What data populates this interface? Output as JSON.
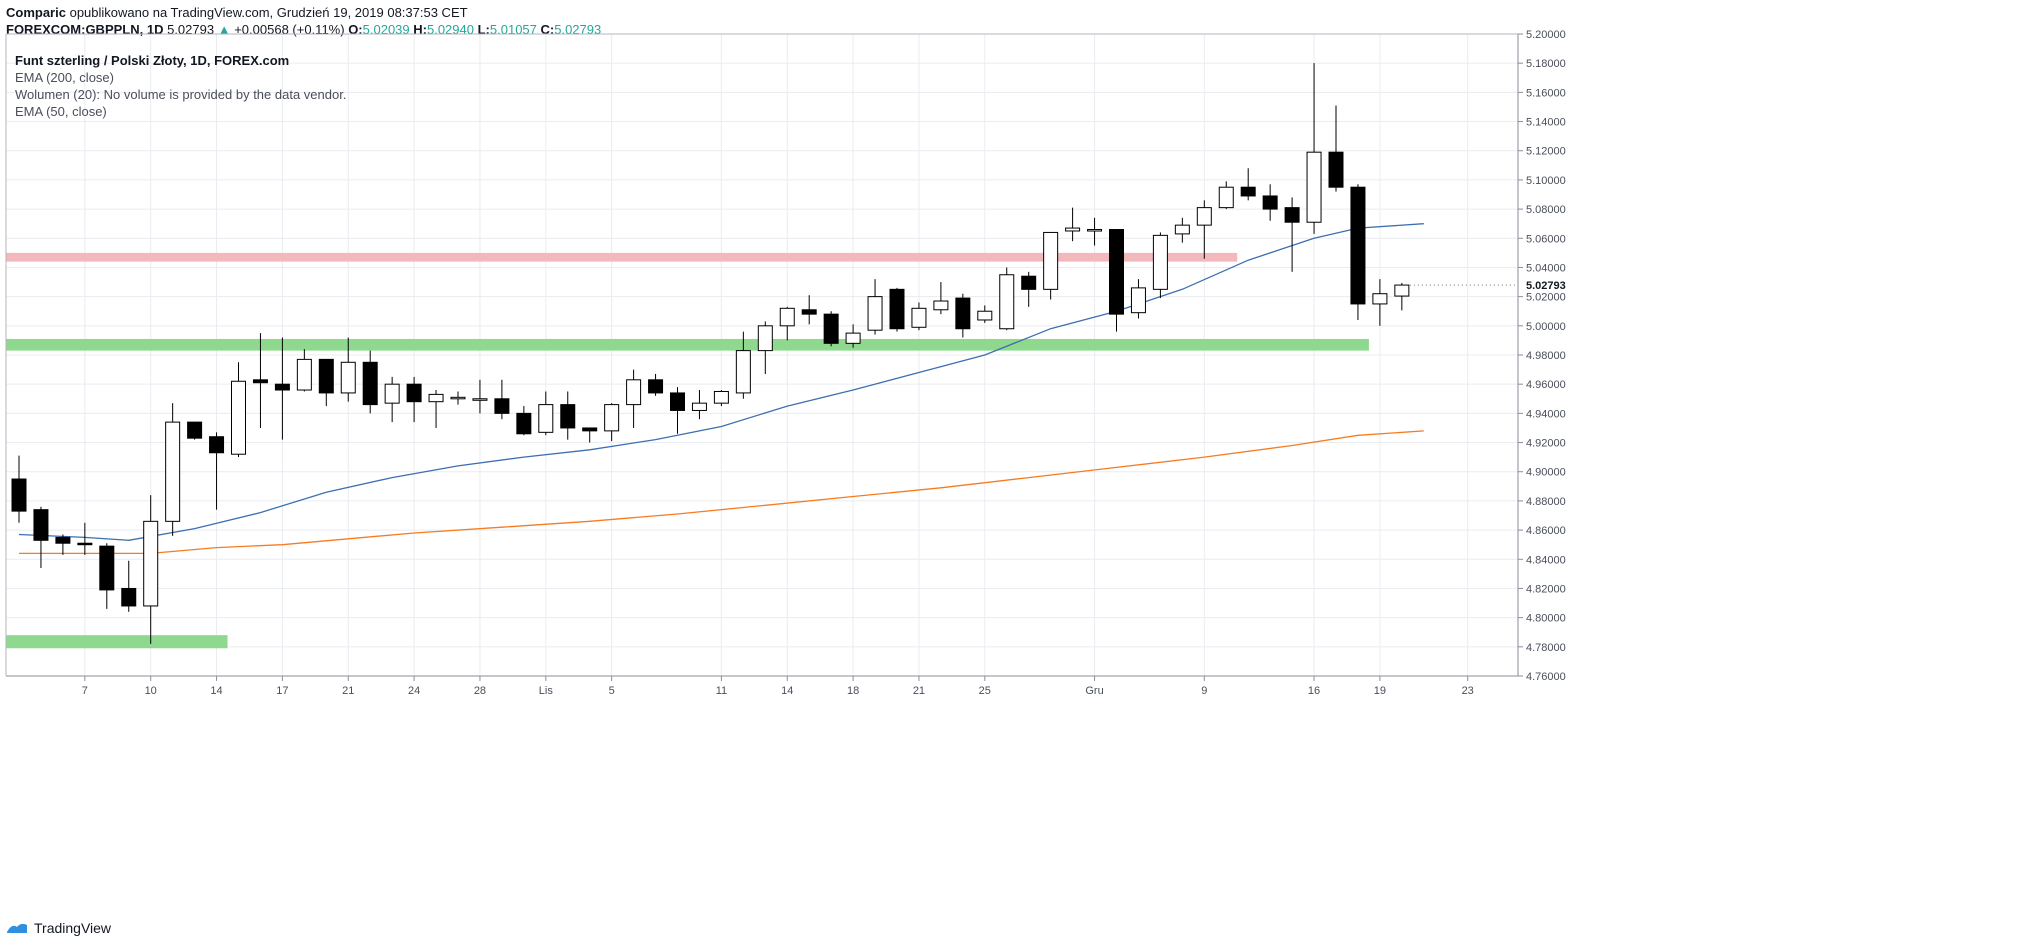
{
  "header": {
    "author": "Comparic",
    "published_text": "opublikowano na TradingView.com, Grudzień 19, 2019 08:37:53 CET",
    "symbol": "FOREXCOM:GBPPLN, 1D",
    "last": "5.02793",
    "change": "+0.00568 (+0.11%)",
    "o_label": "O:",
    "o_value": "5.02039",
    "h_label": "H:",
    "h_value": "5.02940",
    "l_label": "L:",
    "l_value": "5.01057",
    "c_label": "C:",
    "c_value": "5.02793"
  },
  "legend": {
    "title": "Funt szterling / Polski Złoty, 1D, FOREX.com",
    "ema200": "EMA (200, close)",
    "volume": "Wolumen (20): No volume is provided by the data vendor.",
    "ema50": "EMA (50, close)"
  },
  "footer": {
    "brand": "TradingView"
  },
  "colors": {
    "ema200": "#f57c22",
    "ema50": "#3d6fb0",
    "support_zone": "#8fd98f",
    "resistance_zone": "#f2b8bb",
    "grid": "#e9ecf1",
    "axis_text": "#4a4e59",
    "up_body": "#ffffff",
    "down_body": "#000000"
  },
  "chart_data": {
    "type": "candlestick",
    "y_range": [
      4.76,
      5.2
    ],
    "y_ticks": [
      "5.20000",
      "5.18000",
      "5.16000",
      "5.14000",
      "5.12000",
      "5.10000",
      "5.08000",
      "5.06000",
      "5.04000",
      "5.02000",
      "5.00000",
      "4.98000",
      "4.96000",
      "4.94000",
      "4.92000",
      "4.90000",
      "4.88000",
      "4.86000",
      "4.84000",
      "4.82000",
      "4.80000",
      "4.78000",
      "4.76000"
    ],
    "last_price_label": "5.02793",
    "x_ticks": [
      {
        "label": "7",
        "index": 3
      },
      {
        "label": "10",
        "index": 6
      },
      {
        "label": "14",
        "index": 9
      },
      {
        "label": "17",
        "index": 12
      },
      {
        "label": "21",
        "index": 15
      },
      {
        "label": "24",
        "index": 18
      },
      {
        "label": "28",
        "index": 21
      },
      {
        "label": "Lis",
        "index": 24
      },
      {
        "label": "5",
        "index": 27
      },
      {
        "label": "11",
        "index": 32
      },
      {
        "label": "14",
        "index": 35
      },
      {
        "label": "18",
        "index": 38
      },
      {
        "label": "21",
        "index": 41
      },
      {
        "label": "25",
        "index": 44
      },
      {
        "label": "Gru",
        "index": 49
      },
      {
        "label": "9",
        "index": 54
      },
      {
        "label": "16",
        "index": 59
      },
      {
        "label": "19",
        "index": 62
      },
      {
        "label": "23",
        "index": 66
      }
    ],
    "candles": [
      {
        "o": 4.895,
        "h": 4.911,
        "l": 4.865,
        "c": 4.873
      },
      {
        "o": 4.874,
        "h": 4.876,
        "l": 4.834,
        "c": 4.853
      },
      {
        "o": 4.855,
        "h": 4.857,
        "l": 4.843,
        "c": 4.851
      },
      {
        "o": 4.851,
        "h": 4.865,
        "l": 4.843,
        "c": 4.85
      },
      {
        "o": 4.849,
        "h": 4.851,
        "l": 4.806,
        "c": 4.819
      },
      {
        "o": 4.82,
        "h": 4.839,
        "l": 4.804,
        "c": 4.808
      },
      {
        "o": 4.808,
        "h": 4.884,
        "l": 4.782,
        "c": 4.866
      },
      {
        "o": 4.866,
        "h": 4.947,
        "l": 4.856,
        "c": 4.934
      },
      {
        "o": 4.934,
        "h": 4.934,
        "l": 4.922,
        "c": 4.923
      },
      {
        "o": 4.924,
        "h": 4.927,
        "l": 4.874,
        "c": 4.913
      },
      {
        "o": 4.912,
        "h": 4.975,
        "l": 4.91,
        "c": 4.962
      },
      {
        "o": 4.963,
        "h": 4.995,
        "l": 4.93,
        "c": 4.961
      },
      {
        "o": 4.96,
        "h": 4.992,
        "l": 4.922,
        "c": 4.956
      },
      {
        "o": 4.956,
        "h": 4.984,
        "l": 4.955,
        "c": 4.977
      },
      {
        "o": 4.977,
        "h": 4.977,
        "l": 4.945,
        "c": 4.954
      },
      {
        "o": 4.954,
        "h": 4.992,
        "l": 4.948,
        "c": 4.975
      },
      {
        "o": 4.975,
        "h": 4.983,
        "l": 4.94,
        "c": 4.946
      },
      {
        "o": 4.947,
        "h": 4.965,
        "l": 4.934,
        "c": 4.96
      },
      {
        "o": 4.96,
        "h": 4.965,
        "l": 4.934,
        "c": 4.948
      },
      {
        "o": 4.948,
        "h": 4.956,
        "l": 4.93,
        "c": 4.953
      },
      {
        "o": 4.951,
        "h": 4.955,
        "l": 4.946,
        "c": 4.951
      },
      {
        "o": 4.95,
        "h": 4.963,
        "l": 4.94,
        "c": 4.95
      },
      {
        "o": 4.95,
        "h": 4.963,
        "l": 4.936,
        "c": 4.94
      },
      {
        "o": 4.94,
        "h": 4.945,
        "l": 4.925,
        "c": 4.926
      },
      {
        "o": 4.927,
        "h": 4.955,
        "l": 4.925,
        "c": 4.946
      },
      {
        "o": 4.946,
        "h": 4.955,
        "l": 4.922,
        "c": 4.93
      },
      {
        "o": 4.93,
        "h": 4.93,
        "l": 4.92,
        "c": 4.928
      },
      {
        "o": 4.928,
        "h": 4.947,
        "l": 4.921,
        "c": 4.946
      },
      {
        "o": 4.946,
        "h": 4.97,
        "l": 4.93,
        "c": 4.963
      },
      {
        "o": 4.963,
        "h": 4.967,
        "l": 4.952,
        "c": 4.954
      },
      {
        "o": 4.954,
        "h": 4.958,
        "l": 4.926,
        "c": 4.942
      },
      {
        "o": 4.942,
        "h": 4.956,
        "l": 4.936,
        "c": 4.947
      },
      {
        "o": 4.947,
        "h": 4.956,
        "l": 4.945,
        "c": 4.955
      },
      {
        "o": 4.954,
        "h": 4.996,
        "l": 4.95,
        "c": 4.983
      },
      {
        "o": 4.983,
        "h": 5.003,
        "l": 4.967,
        "c": 5.0
      },
      {
        "o": 5.0,
        "h": 5.013,
        "l": 4.99,
        "c": 5.012
      },
      {
        "o": 5.011,
        "h": 5.021,
        "l": 5.001,
        "c": 5.008
      },
      {
        "o": 5.008,
        "h": 5.01,
        "l": 4.986,
        "c": 4.988
      },
      {
        "o": 4.988,
        "h": 5.001,
        "l": 4.985,
        "c": 4.995
      },
      {
        "o": 4.997,
        "h": 5.032,
        "l": 4.994,
        "c": 5.02
      },
      {
        "o": 5.025,
        "h": 5.026,
        "l": 4.996,
        "c": 4.998
      },
      {
        "o": 4.999,
        "h": 5.016,
        "l": 4.997,
        "c": 5.012
      },
      {
        "o": 5.011,
        "h": 5.03,
        "l": 5.008,
        "c": 5.017
      },
      {
        "o": 5.019,
        "h": 5.022,
        "l": 4.992,
        "c": 4.998
      },
      {
        "o": 5.004,
        "h": 5.014,
        "l": 5.002,
        "c": 5.01
      },
      {
        "o": 4.998,
        "h": 5.04,
        "l": 4.997,
        "c": 5.035
      },
      {
        "o": 5.034,
        "h": 5.037,
        "l": 5.013,
        "c": 5.025
      },
      {
        "o": 5.025,
        "h": 5.064,
        "l": 5.018,
        "c": 5.064
      },
      {
        "o": 5.065,
        "h": 5.081,
        "l": 5.058,
        "c": 5.067
      },
      {
        "o": 5.066,
        "h": 5.074,
        "l": 5.055,
        "c": 5.066
      },
      {
        "o": 5.066,
        "h": 5.066,
        "l": 4.996,
        "c": 5.008
      },
      {
        "o": 5.009,
        "h": 5.032,
        "l": 5.005,
        "c": 5.026
      },
      {
        "o": 5.025,
        "h": 5.064,
        "l": 5.019,
        "c": 5.062
      },
      {
        "o": 5.063,
        "h": 5.074,
        "l": 5.057,
        "c": 5.069
      },
      {
        "o": 5.069,
        "h": 5.086,
        "l": 5.046,
        "c": 5.081
      },
      {
        "o": 5.081,
        "h": 5.099,
        "l": 5.08,
        "c": 5.095
      },
      {
        "o": 5.095,
        "h": 5.108,
        "l": 5.086,
        "c": 5.089
      },
      {
        "o": 5.089,
        "h": 5.097,
        "l": 5.072,
        "c": 5.08
      },
      {
        "o": 5.081,
        "h": 5.088,
        "l": 5.037,
        "c": 5.071
      },
      {
        "o": 5.071,
        "h": 5.18,
        "l": 5.063,
        "c": 5.119
      },
      {
        "o": 5.119,
        "h": 5.151,
        "l": 5.092,
        "c": 5.095
      },
      {
        "o": 5.095,
        "h": 5.097,
        "l": 5.004,
        "c": 5.015
      },
      {
        "o": 5.015,
        "h": 5.032,
        "l": 5.0,
        "c": 5.022
      },
      {
        "o": 5.02039,
        "h": 5.0294,
        "l": 5.01057,
        "c": 5.02793
      }
    ],
    "ema50": [
      [
        0,
        4.857
      ],
      [
        3,
        4.855
      ],
      [
        5,
        4.853
      ],
      [
        8,
        4.861
      ],
      [
        11,
        4.872
      ],
      [
        14,
        4.886
      ],
      [
        17,
        4.896
      ],
      [
        20,
        4.904
      ],
      [
        23,
        4.91
      ],
      [
        26,
        4.915
      ],
      [
        29,
        4.922
      ],
      [
        32,
        4.931
      ],
      [
        35,
        4.945
      ],
      [
        38,
        4.956
      ],
      [
        41,
        4.968
      ],
      [
        44,
        4.98
      ],
      [
        47,
        4.998
      ],
      [
        50,
        5.01
      ],
      [
        53,
        5.025
      ],
      [
        56,
        5.045
      ],
      [
        59,
        5.06
      ],
      [
        61,
        5.067
      ],
      [
        64,
        5.07
      ]
    ],
    "ema200": [
      [
        0,
        4.844
      ],
      [
        6,
        4.844
      ],
      [
        9,
        4.848
      ],
      [
        12,
        4.85
      ],
      [
        15,
        4.854
      ],
      [
        18,
        4.858
      ],
      [
        22,
        4.862
      ],
      [
        26,
        4.866
      ],
      [
        30,
        4.871
      ],
      [
        34,
        4.877
      ],
      [
        38,
        4.883
      ],
      [
        42,
        4.889
      ],
      [
        46,
        4.896
      ],
      [
        50,
        4.903
      ],
      [
        54,
        4.91
      ],
      [
        58,
        4.918
      ],
      [
        61,
        4.925
      ],
      [
        64,
        4.928
      ]
    ],
    "zones": [
      {
        "kind": "resistance",
        "y_low": 5.044,
        "y_high": 5.05,
        "x_end": 55.5
      },
      {
        "kind": "support",
        "y_low": 4.983,
        "y_high": 4.991,
        "x_end": 61.5
      },
      {
        "kind": "support",
        "y_low": 4.779,
        "y_high": 4.788,
        "x_end": 9.5
      }
    ]
  }
}
